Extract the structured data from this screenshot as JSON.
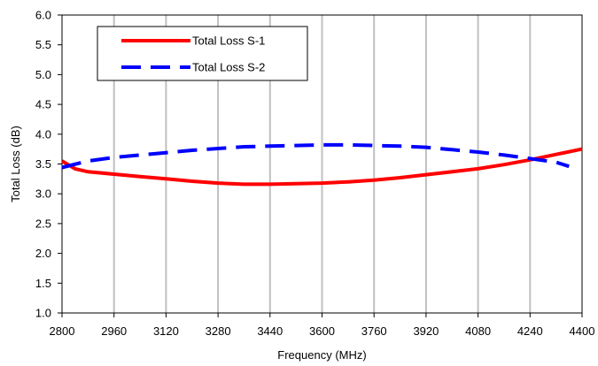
{
  "chart_data": {
    "type": "line",
    "title": "",
    "xlabel": "Frequency (MHz)",
    "ylabel": "Total Loss (dB)",
    "xlim": [
      2800,
      4400
    ],
    "ylim": [
      1.0,
      6.0
    ],
    "x_ticks": [
      2800,
      2960,
      3120,
      3280,
      3440,
      3600,
      3760,
      3920,
      4080,
      4240,
      4400
    ],
    "y_ticks": [
      "1.0",
      "1.5",
      "2.0",
      "2.5",
      "3.0",
      "3.5",
      "4.0",
      "4.5",
      "5.0",
      "5.5",
      "6.0"
    ],
    "grid": "vertical",
    "legend_position": "top-left",
    "series": [
      {
        "name": "Total Loss S-1",
        "color": "#ff0000",
        "style": "solid",
        "x": [
          2800,
          2840,
          2880,
          2960,
          3040,
          3120,
          3200,
          3280,
          3360,
          3440,
          3520,
          3600,
          3680,
          3760,
          3840,
          3920,
          4000,
          4080,
          4160,
          4240,
          4320,
          4400
        ],
        "y": [
          3.55,
          3.42,
          3.37,
          3.33,
          3.29,
          3.25,
          3.21,
          3.18,
          3.16,
          3.16,
          3.17,
          3.18,
          3.2,
          3.23,
          3.27,
          3.32,
          3.37,
          3.42,
          3.49,
          3.57,
          3.66,
          3.75
        ]
      },
      {
        "name": "Total Loss S-2",
        "color": "#0000ff",
        "style": "dashed",
        "x": [
          2800,
          2880,
          2960,
          3040,
          3120,
          3200,
          3280,
          3360,
          3440,
          3520,
          3600,
          3680,
          3760,
          3840,
          3920,
          4000,
          4080,
          4160,
          4240,
          4320,
          4360
        ],
        "y": [
          3.44,
          3.55,
          3.61,
          3.65,
          3.69,
          3.73,
          3.76,
          3.79,
          3.8,
          3.81,
          3.82,
          3.82,
          3.81,
          3.8,
          3.78,
          3.74,
          3.7,
          3.65,
          3.59,
          3.53,
          3.46
        ]
      }
    ]
  }
}
